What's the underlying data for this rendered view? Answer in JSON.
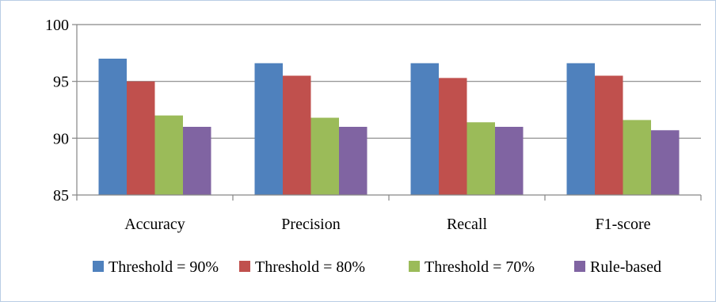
{
  "chart_data": {
    "type": "bar",
    "categories": [
      "Accuracy",
      "Precision",
      "Recall",
      "F1-score"
    ],
    "series": [
      {
        "name": "Threshold = 90%",
        "color": "#4f81bd",
        "values": [
          97.0,
          96.6,
          96.6,
          96.6
        ]
      },
      {
        "name": "Threshold = 80%",
        "color": "#c0504d",
        "values": [
          95.0,
          95.5,
          95.3,
          95.5
        ]
      },
      {
        "name": "Threshold = 70%",
        "color": "#9bbb59",
        "values": [
          92.0,
          91.8,
          91.4,
          91.6
        ]
      },
      {
        "name": "Rule-based",
        "color": "#8064a2",
        "values": [
          91.0,
          91.0,
          91.0,
          90.7
        ]
      }
    ],
    "yticks": [
      85,
      90,
      95,
      100
    ],
    "ylim": [
      85,
      100
    ],
    "grid": true,
    "legend_position": "bottom",
    "title": "",
    "xlabel": "",
    "ylabel": ""
  }
}
